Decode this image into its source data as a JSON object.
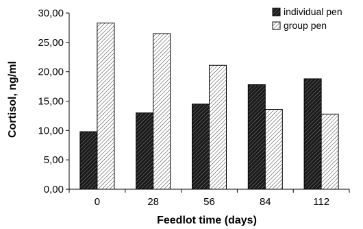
{
  "chart_data": {
    "type": "bar",
    "title": "",
    "xlabel": "Feedlot time (days)",
    "ylabel": "Cortisol, ng/ml",
    "categories": [
      "0",
      "28",
      "56",
      "84",
      "112"
    ],
    "y_ticks": [
      "0,00",
      "5,00",
      "10,00",
      "15,00",
      "20,00",
      "25,00",
      "30,00"
    ],
    "ylim": [
      0,
      30
    ],
    "grid": false,
    "legend_position": "top-right",
    "series": [
      {
        "name": "individual pen",
        "pattern": "dark-hatch",
        "values": [
          9.8,
          13.0,
          14.5,
          17.8,
          18.8
        ]
      },
      {
        "name": "group pen",
        "pattern": "light-hatch",
        "values": [
          28.3,
          26.5,
          21.1,
          13.6,
          12.8
        ]
      }
    ]
  }
}
